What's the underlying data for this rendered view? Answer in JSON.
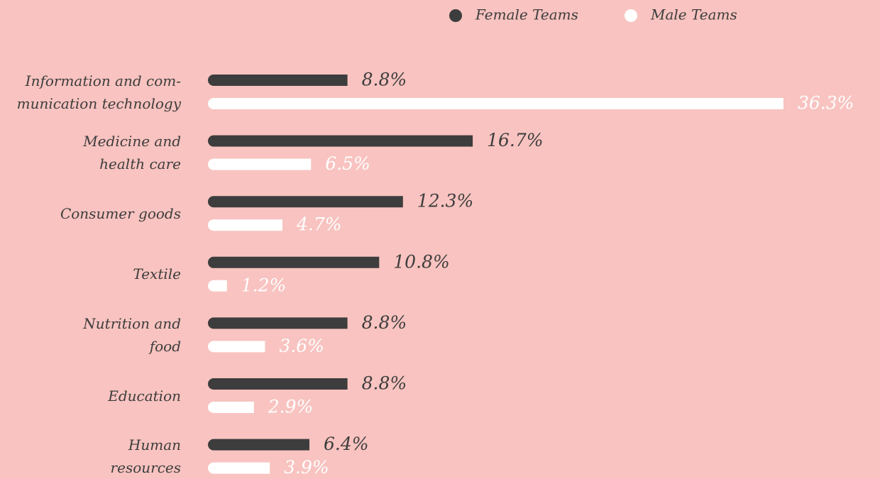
{
  "chart_data": {
    "type": "bar",
    "orientation": "horizontal",
    "categories": [
      "Information and com-\nmunication technology",
      "Medicine and\nhealth care",
      "Consumer goods",
      "Textile",
      "Nutrition and\nfood",
      "Education",
      "Human\nresources"
    ],
    "series": [
      {
        "name": "Female Teams",
        "color": "#3d3d3d",
        "values": [
          8.8,
          16.7,
          12.3,
          10.8,
          8.8,
          8.8,
          6.4
        ],
        "value_labels": [
          "8.8%",
          "16.7%",
          "12.3%",
          "10.8%",
          "8.8%",
          "8.8%",
          "6.4%"
        ]
      },
      {
        "name": "Male Teams",
        "color": "#ffffff",
        "values": [
          36.3,
          6.5,
          4.7,
          1.2,
          3.6,
          2.9,
          3.9
        ],
        "value_labels": [
          "36.3%",
          "6.5%",
          "4.7%",
          "1.2%",
          "3.6%",
          "2.9%",
          "3.9%"
        ]
      }
    ],
    "legend": "top"
  }
}
